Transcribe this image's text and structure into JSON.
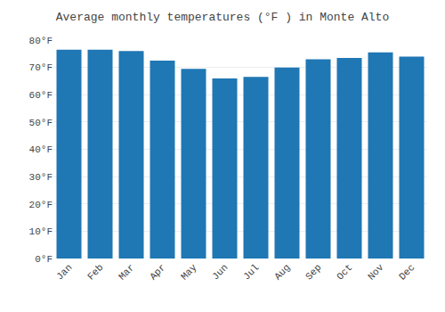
{
  "chart_data": {
    "type": "bar",
    "title": "Average monthly temperatures (°F ) in Monte Alto",
    "categories": [
      "Jan",
      "Feb",
      "Mar",
      "Apr",
      "May",
      "Jun",
      "Jul",
      "Aug",
      "Sep",
      "Oct",
      "Nov",
      "Dec"
    ],
    "values": [
      76.5,
      76.5,
      76.0,
      72.5,
      69.5,
      66.0,
      66.5,
      70.0,
      73.0,
      73.5,
      75.5,
      74.0
    ],
    "ylim": [
      0,
      80
    ],
    "yticks": [
      {
        "value": 0,
        "label": "0°F"
      },
      {
        "value": 10,
        "label": "10°F"
      },
      {
        "value": 20,
        "label": "20°F"
      },
      {
        "value": 30,
        "label": "30°F"
      },
      {
        "value": 40,
        "label": "40°F"
      },
      {
        "value": 50,
        "label": "50°F"
      },
      {
        "value": 60,
        "label": "60°F"
      },
      {
        "value": 70,
        "label": "70°F"
      },
      {
        "value": 80,
        "label": "80°F"
      }
    ],
    "grid": true
  }
}
